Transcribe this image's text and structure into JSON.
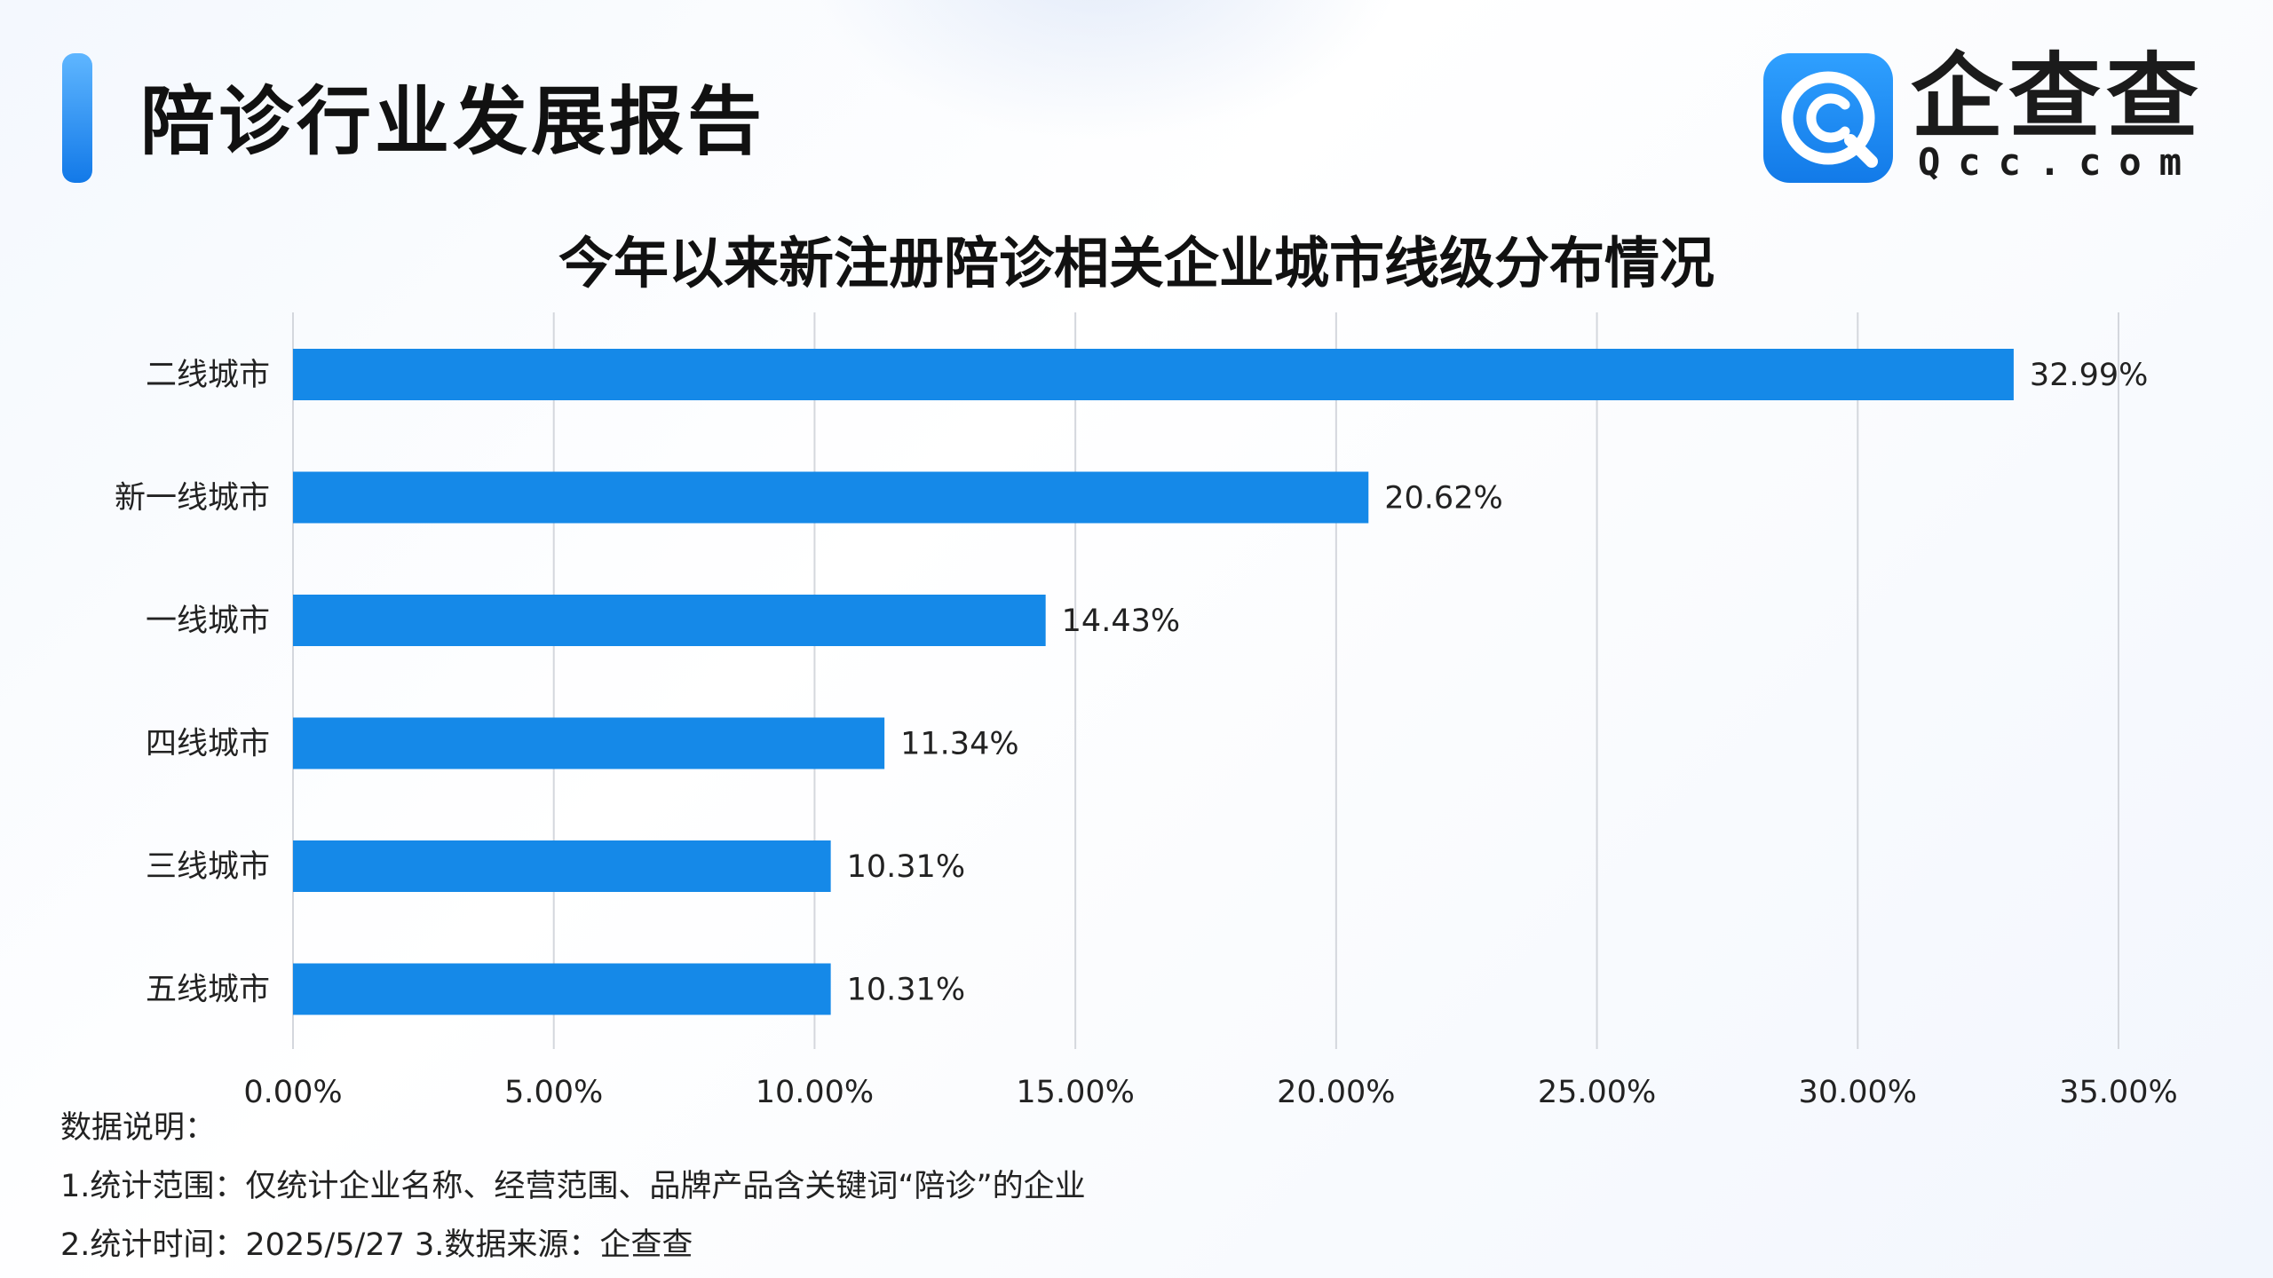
{
  "header": {
    "report_title": "陪诊行业发展报告",
    "logo_text": "企查查",
    "logo_sub": "Qcc.com",
    "logo_icon": "qcc-logo-icon",
    "accent_color": "#1589e8"
  },
  "chart_data": {
    "type": "bar",
    "orientation": "horizontal",
    "title": "今年以来新注册陪诊相关企业城市线级分布情况",
    "xlabel": "",
    "ylabel": "",
    "categories": [
      "二线城市",
      "新一线城市",
      "一线城市",
      "四线城市",
      "三线城市",
      "五线城市"
    ],
    "values": [
      32.99,
      20.62,
      14.43,
      11.34,
      10.31,
      10.31
    ],
    "value_labels": [
      "32.99%",
      "20.62%",
      "14.43%",
      "11.34%",
      "10.31%",
      "10.31%"
    ],
    "xlim": [
      0,
      35
    ],
    "x_ticks": [
      0,
      5,
      10,
      15,
      20,
      25,
      30,
      35
    ],
    "x_tick_labels": [
      "0.00%",
      "5.00%",
      "10.00%",
      "15.00%",
      "20.00%",
      "25.00%",
      "30.00%",
      "35.00%"
    ],
    "grid": "vertical",
    "legend": "none",
    "bar_color": "#1589e8",
    "grid_color": "#d4d7dd"
  },
  "notes": {
    "heading": "数据说明：",
    "line1": "1.统计范围：仅统计企业名称、经营范围、品牌产品含关键词“陪诊”的企业",
    "line2": " 2.统计时间：2025/5/27   3.数据来源：企查查"
  }
}
